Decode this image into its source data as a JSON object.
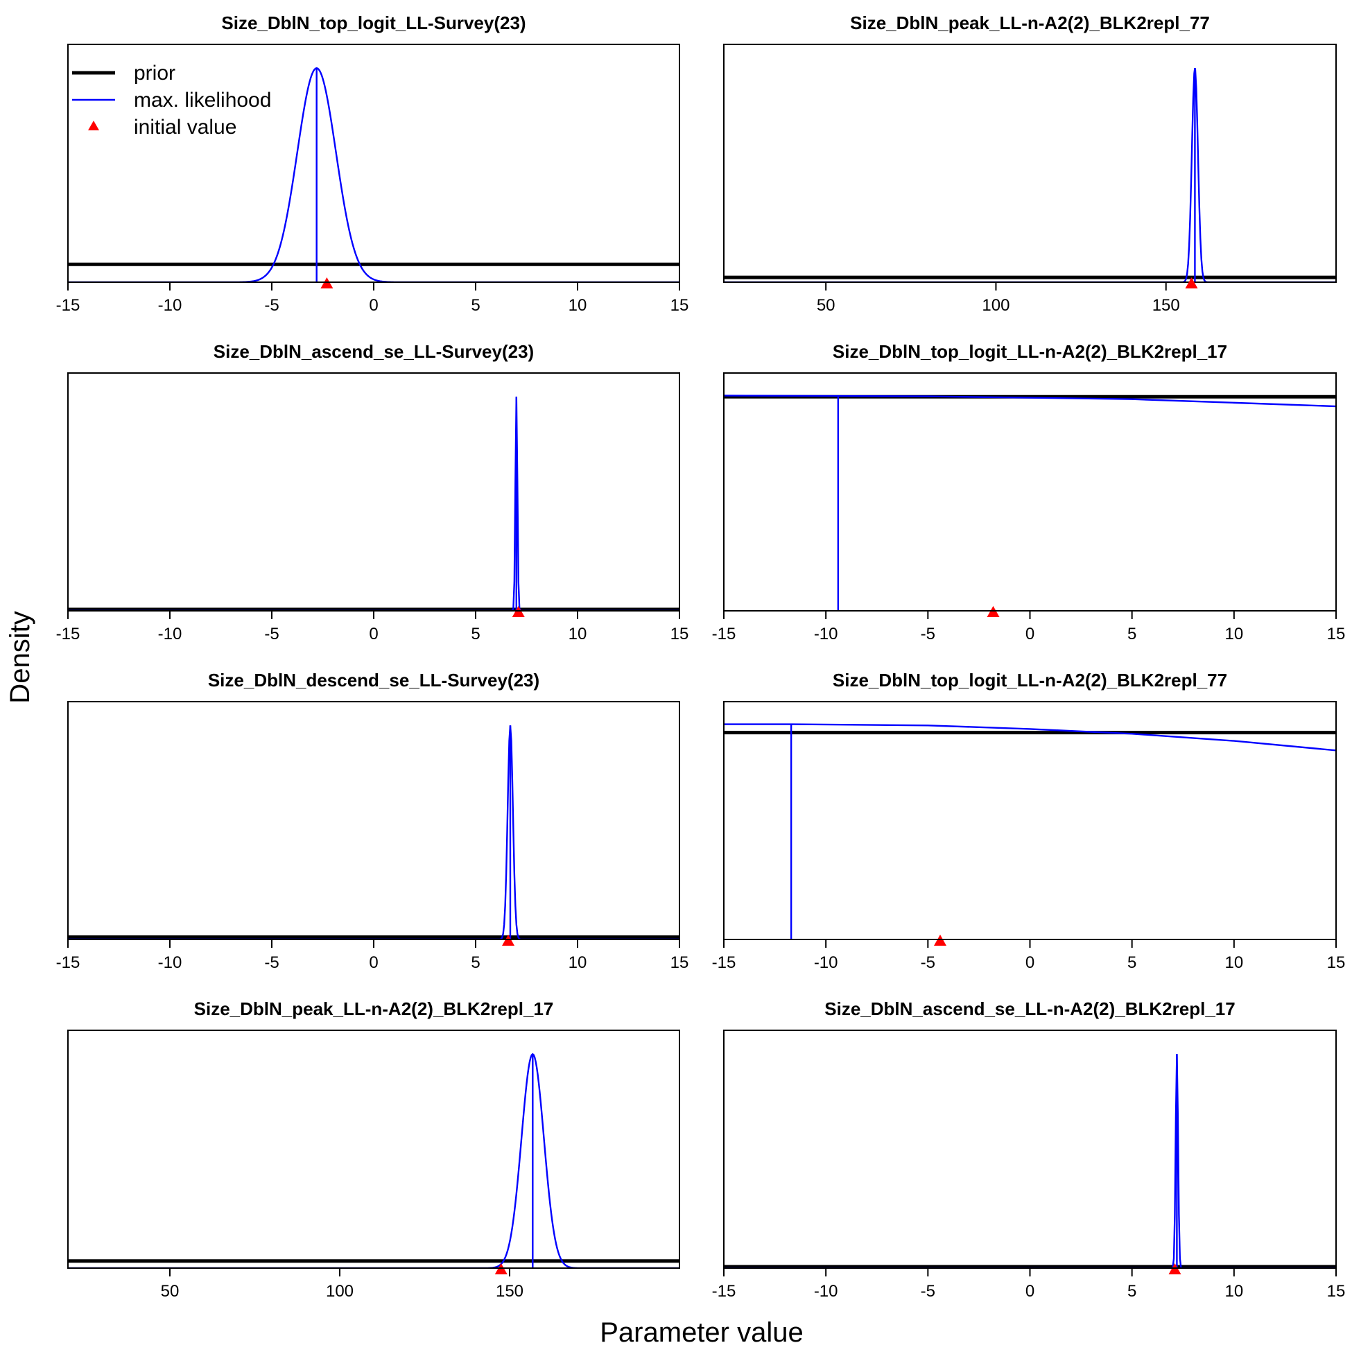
{
  "figure": {
    "xlabel": "Parameter value",
    "ylabel": "Density",
    "legend": {
      "placement": "top-left of first panel",
      "items": [
        {
          "label": "prior",
          "color": "#000000",
          "kind": "thick-line"
        },
        {
          "label": "max. likelihood",
          "color": "#0000ff",
          "kind": "line"
        },
        {
          "label": "initial value",
          "color": "#ff0000",
          "kind": "triangle"
        }
      ]
    }
  },
  "chart_data": [
    {
      "type": "line",
      "title": "Size_DblN_top_logit_LL-Survey(23)",
      "xlim": [
        -15,
        15
      ],
      "xticks": [
        -15,
        -10,
        -5,
        0,
        5,
        10,
        15
      ],
      "prior_level": 0.075,
      "mle": -2.8,
      "sd": 0.95,
      "mle_line": "full",
      "initial_value": -2.3,
      "curve": "gaussian"
    },
    {
      "type": "line",
      "title": "Size_DblN_peak_LL-n-A2(2)_BLK2repl_77",
      "xlim": [
        20,
        200
      ],
      "xticks": [
        50,
        100,
        150
      ],
      "prior_level": 0.02,
      "mle": 158.5,
      "sd": 0.9,
      "mle_line": "full",
      "initial_value": 157.5,
      "curve": "gaussian"
    },
    {
      "type": "line",
      "title": "Size_DblN_ascend_se_LL-Survey(23)",
      "xlim": [
        -15,
        15
      ],
      "xticks": [
        -15,
        -10,
        -5,
        0,
        5,
        10,
        15
      ],
      "prior_level": 0.006,
      "mle": 7.0,
      "sd": 0.05,
      "mle_line": "full",
      "initial_value": 7.1,
      "curve": "gaussian"
    },
    {
      "type": "line",
      "title": "Size_DblN_top_logit_LL-n-A2(2)_BLK2repl_17",
      "xlim": [
        -15,
        15
      ],
      "xticks": [
        -15,
        -10,
        -5,
        0,
        5,
        10,
        15
      ],
      "prior_level": 0.9,
      "mle": -9.4,
      "mle_line": "to-prior",
      "initial_value": -1.8,
      "curve": "sloped",
      "curve_points": [
        [
          -15,
          0.905
        ],
        [
          -5,
          0.902
        ],
        [
          5,
          0.89
        ],
        [
          10,
          0.875
        ],
        [
          15,
          0.86
        ]
      ]
    },
    {
      "type": "line",
      "title": "Size_DblN_descend_se_LL-Survey(23)",
      "xlim": [
        -15,
        15
      ],
      "xticks": [
        -15,
        -10,
        -5,
        0,
        5,
        10,
        15
      ],
      "prior_level": 0.01,
      "mle": 6.7,
      "sd": 0.13,
      "mle_line": "full",
      "initial_value": 6.6,
      "curve": "gaussian"
    },
    {
      "type": "line",
      "title": "Size_DblN_top_logit_LL-n-A2(2)_BLK2repl_77",
      "xlim": [
        -15,
        15
      ],
      "xticks": [
        -15,
        -10,
        -5,
        0,
        5,
        10,
        15
      ],
      "prior_level": 0.87,
      "mle": -11.7,
      "mle_line": "to-curve",
      "initial_value": -4.4,
      "curve": "sloped",
      "curve_points": [
        [
          -15,
          0.905
        ],
        [
          -11.7,
          0.905
        ],
        [
          -5,
          0.9
        ],
        [
          0,
          0.885
        ],
        [
          5,
          0.865
        ],
        [
          10,
          0.835
        ],
        [
          15,
          0.795
        ]
      ]
    },
    {
      "type": "line",
      "title": "Size_DblN_peak_LL-n-A2(2)_BLK2repl_17",
      "xlim": [
        20,
        200
      ],
      "xticks": [
        50,
        100,
        150
      ],
      "prior_level": 0.03,
      "mle": 156.8,
      "sd": 3.3,
      "mle_line": "full",
      "initial_value": 147.5,
      "curve": "gaussian"
    },
    {
      "type": "line",
      "title": "Size_DblN_ascend_se_LL-n-A2(2)_BLK2repl_17",
      "xlim": [
        -15,
        15
      ],
      "xticks": [
        -15,
        -10,
        -5,
        0,
        5,
        10,
        15
      ],
      "prior_level": 0.006,
      "mle": 7.2,
      "sd": 0.06,
      "mle_line": "full",
      "initial_value": 7.1,
      "curve": "gaussian"
    }
  ]
}
